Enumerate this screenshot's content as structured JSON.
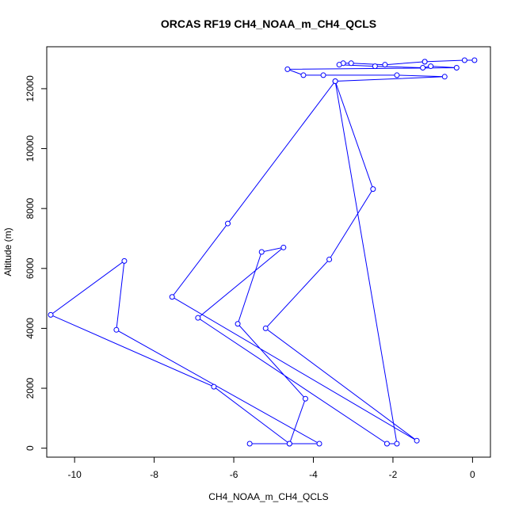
{
  "chart_data": {
    "type": "scatter",
    "title": "ORCAS RF19 CH4_NOAA_m_CH4_QCLS",
    "xlabel": "CH4_NOAA_m_CH4_QCLS",
    "ylabel": "Altitude (m)",
    "xlim": [
      -10.7,
      0.45
    ],
    "ylim": [
      -300,
      13400
    ],
    "xticks": [
      -10,
      -8,
      -6,
      -4,
      -2,
      0
    ],
    "yticks": [
      0,
      2000,
      4000,
      6000,
      8000,
      10000,
      12000
    ],
    "grid": false,
    "style": "points connected by lines",
    "series_color": "#0000ff",
    "series": [
      {
        "x": [
          0.05,
          -0.2,
          -1.2,
          -1.2,
          -2.2,
          -3.05,
          -3.25,
          -3.35,
          -2.45,
          -1.25,
          -1.05,
          -0.4,
          -4.65,
          -4.25,
          -3.75,
          -1.9,
          -0.7,
          -3.45,
          -2.5,
          -3.6,
          -5.2,
          -1.4,
          -7.55,
          -6.15,
          -3.45,
          -1.9,
          -2.15,
          -6.9,
          -4.75,
          -5.3,
          -5.9,
          -4.2,
          -4.6,
          -5.6,
          -3.85,
          -8.95,
          -8.75,
          -10.6,
          -6.5,
          -4.6
        ],
        "y": [
          12950,
          12950,
          12900,
          12900,
          12800,
          12850,
          12850,
          12800,
          12750,
          12700,
          12750,
          12700,
          12650,
          12450,
          12450,
          12450,
          12400,
          12250,
          8650,
          6300,
          4000,
          250,
          5050,
          7500,
          12250,
          150,
          150,
          4350,
          6700,
          6550,
          4150,
          1650,
          150,
          150,
          150,
          3950,
          6250,
          4450,
          2050,
          150
        ]
      }
    ]
  }
}
